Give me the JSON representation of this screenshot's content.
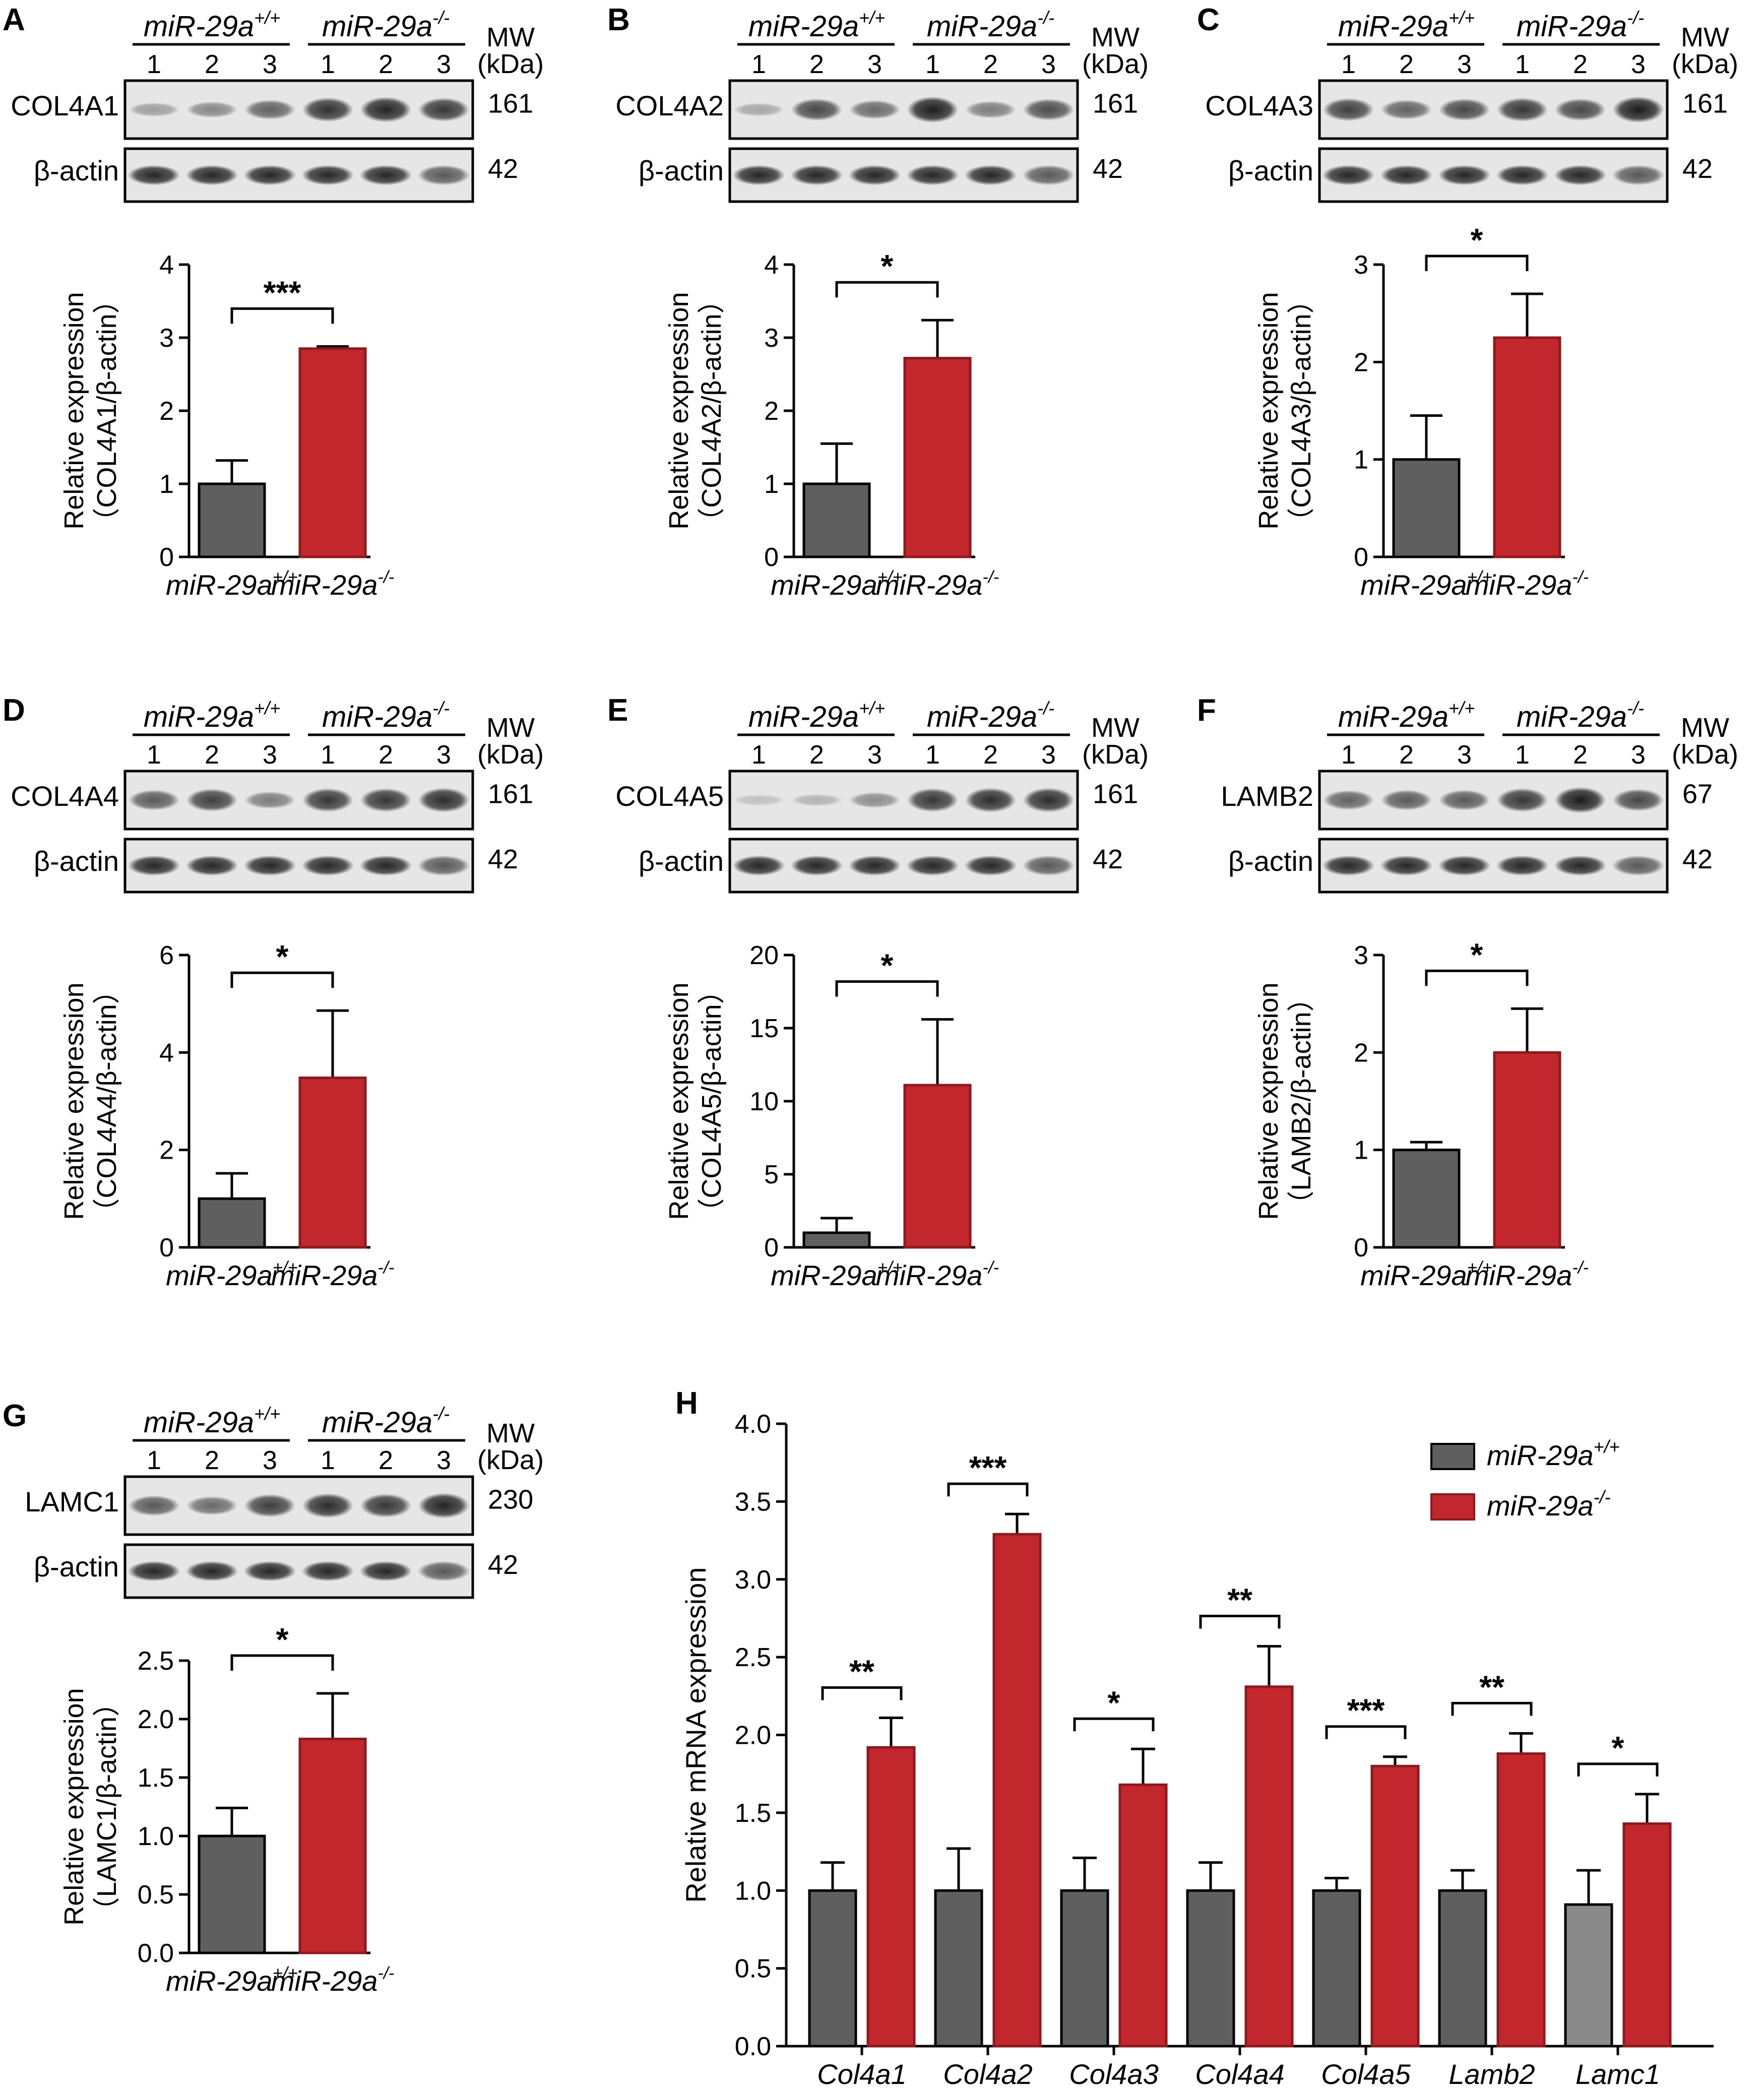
{
  "colors": {
    "wt": "#5f5f5f",
    "ko": "#c1272d",
    "ko_edge": "#8a1a1e",
    "axis": "#000000",
    "band": "#1c1c1c",
    "blot_bg": "#e6e6e6"
  },
  "common": {
    "group_wt": "miR-29a",
    "group_ko": "miR-29a",
    "sup_wt": "+/+",
    "sup_ko": "-/-",
    "lanes": [
      "1",
      "2",
      "3"
    ],
    "mw_label": "MW",
    "kda_label": "(kDa)",
    "actin_label": "β-actin",
    "actin_kda": "42",
    "ylabel_line1": "Relative  expression"
  },
  "panels": [
    {
      "letter": "A",
      "protein": "COL4A1",
      "kda": "161",
      "ylabel_line2": "（COL4A1/β-actin）",
      "yticks": [
        "0",
        "1",
        "2",
        "3",
        "4"
      ],
      "ymax": 4,
      "wt": 1.0,
      "wt_err": 0.32,
      "ko": 2.85,
      "ko_err": 0.03,
      "sig": "***",
      "band_wt": [
        0.25,
        0.38,
        0.6
      ],
      "band_ko": [
        0.88,
        0.95,
        0.85
      ]
    },
    {
      "letter": "B",
      "protein": "COL4A2",
      "kda": "161",
      "ylabel_line2": "（COL4A2/β-actin）",
      "yticks": [
        "0",
        "1",
        "2",
        "3",
        "4"
      ],
      "ymax": 4,
      "wt": 1.0,
      "wt_err": 0.55,
      "ko": 2.72,
      "ko_err": 0.52,
      "sig": "*",
      "band_wt": [
        0.2,
        0.75,
        0.55
      ],
      "band_ko": [
        1.0,
        0.45,
        0.72
      ]
    },
    {
      "letter": "C",
      "protein": "COL4A3",
      "kda": "161",
      "ylabel_line2": "（COL4A3/β-actin）",
      "yticks": [
        "0",
        "1",
        "2",
        "3"
      ],
      "ymax": 3,
      "wt": 1.0,
      "wt_err": 0.45,
      "ko": 2.25,
      "ko_err": 0.45,
      "sig": "*",
      "band_wt": [
        0.8,
        0.6,
        0.75
      ],
      "band_ko": [
        0.85,
        0.75,
        1.0
      ]
    },
    {
      "letter": "D",
      "protein": "COL4A4",
      "kda": "161",
      "ylabel_line2": "（COL4A4/β-actin）",
      "yticks": [
        "0",
        "2",
        "4",
        "6"
      ],
      "ymax": 6,
      "wt": 1.0,
      "wt_err": 0.52,
      "ko": 3.48,
      "ko_err": 1.38,
      "sig": "*",
      "band_wt": [
        0.65,
        0.8,
        0.45
      ],
      "band_ko": [
        0.85,
        0.85,
        0.9
      ]
    },
    {
      "letter": "E",
      "protein": "COL4A5",
      "kda": "161",
      "ylabel_line2": "（COL4A5/β-actin）",
      "yticks": [
        "0",
        "5",
        "10",
        "15",
        "20"
      ],
      "ymax": 20,
      "wt": 1.0,
      "wt_err": 1.0,
      "ko": 11.1,
      "ko_err": 4.5,
      "sig": "*",
      "band_wt": [
        0.05,
        0.12,
        0.35
      ],
      "band_ko": [
        0.85,
        0.9,
        0.9
      ]
    },
    {
      "letter": "F",
      "protein": "LAMB2",
      "kda": "67",
      "ylabel_line2": "（LAMB2/β-actin）",
      "yticks": [
        "0",
        "1",
        "2",
        "3"
      ],
      "ymax": 3,
      "wt": 1.0,
      "wt_err": 0.08,
      "ko": 2.0,
      "ko_err": 0.45,
      "sig": "*",
      "band_wt": [
        0.6,
        0.65,
        0.65
      ],
      "band_ko": [
        0.85,
        1.0,
        0.75
      ]
    },
    {
      "letter": "G",
      "protein": "LAMC1",
      "kda": "230",
      "ylabel_line2": "（LAMC1/β-actin）",
      "yticks": [
        "0.0",
        "0.5",
        "1.0",
        "1.5",
        "2.0",
        "2.5"
      ],
      "ymax": 2.5,
      "wt": 1.0,
      "wt_err": 0.24,
      "ko": 1.83,
      "ko_err": 0.39,
      "sig": "*",
      "band_wt": [
        0.65,
        0.55,
        0.8
      ],
      "band_ko": [
        0.9,
        0.85,
        0.95
      ]
    }
  ],
  "chart_data": {
    "letter": "H",
    "type": "bar",
    "ylabel": "Relative mRNA expression",
    "ylim": [
      0,
      4.0
    ],
    "yticks": [
      "0.0",
      "0.5",
      "1.0",
      "1.5",
      "2.0",
      "2.5",
      "3.0",
      "3.5",
      "4.0"
    ],
    "categories": [
      "Col4a1",
      "Col4a2",
      "Col4a3",
      "Col4a4",
      "Col4a5",
      "Lamb2",
      "Lamc1"
    ],
    "series": [
      {
        "name": "miR-29a",
        "sup": "+/+",
        "values": [
          1.0,
          1.0,
          1.0,
          1.0,
          1.0,
          1.0,
          0.91
        ],
        "errors": [
          0.18,
          0.27,
          0.21,
          0.18,
          0.08,
          0.13,
          0.22
        ]
      },
      {
        "name": "miR-29a",
        "sup": "-/-",
        "values": [
          1.92,
          3.29,
          1.68,
          2.31,
          1.8,
          1.88,
          1.43
        ],
        "errors": [
          0.19,
          0.13,
          0.23,
          0.26,
          0.06,
          0.13,
          0.19
        ]
      }
    ],
    "significance": [
      "**",
      "***",
      "*",
      "**",
      "***",
      "**",
      "*"
    ]
  }
}
